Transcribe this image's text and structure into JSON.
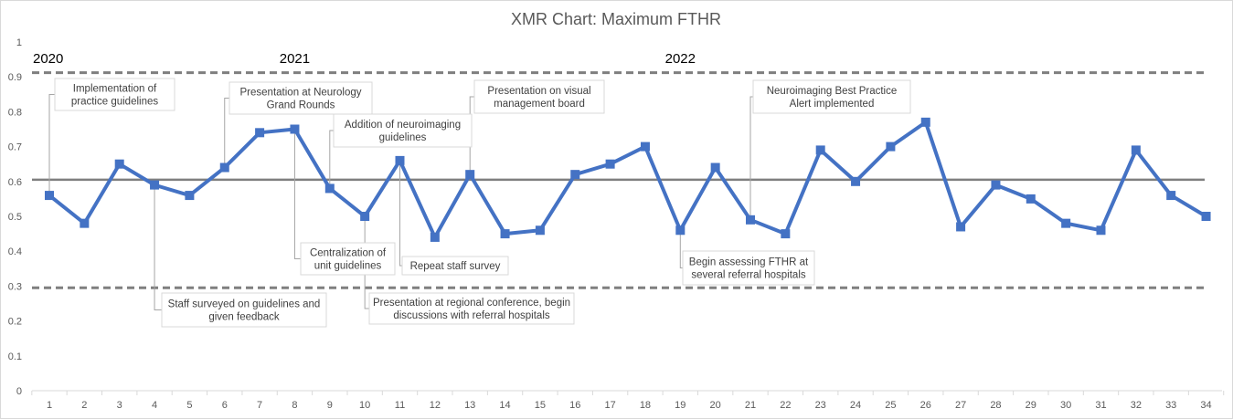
{
  "chart_data": {
    "type": "line",
    "title": "XMR Chart: Maximum FTHR",
    "xlabel": "",
    "ylabel": "",
    "x": [
      1,
      2,
      3,
      4,
      5,
      6,
      7,
      8,
      9,
      10,
      11,
      12,
      13,
      14,
      15,
      16,
      17,
      18,
      19,
      20,
      21,
      22,
      23,
      24,
      25,
      26,
      27,
      28,
      29,
      30,
      31,
      32,
      33,
      34
    ],
    "series": [
      {
        "values": [
          0.56,
          0.48,
          0.65,
          0.59,
          0.56,
          0.64,
          0.74,
          0.75,
          0.58,
          0.5,
          0.66,
          0.44,
          0.62,
          0.45,
          0.46,
          0.62,
          0.65,
          0.7,
          0.46,
          0.64,
          0.49,
          0.45,
          0.69,
          0.6,
          0.7,
          0.77,
          0.47,
          0.59,
          0.55,
          0.48,
          0.46,
          0.69,
          0.56,
          0.5
        ],
        "color": "#4472c4"
      }
    ],
    "center_line": {
      "value": 0.605,
      "color": "#7f7f7f"
    },
    "upper_limit": {
      "value": 0.912,
      "color": "#7f7f7f",
      "style": "dashed"
    },
    "lower_limit": {
      "value": 0.295,
      "color": "#7f7f7f",
      "style": "dashed"
    },
    "ylim": [
      0,
      1
    ],
    "yticks": [
      "0",
      "0.1",
      "0.2",
      "0.3",
      "0.4",
      "0.5",
      "0.6",
      "0.7",
      "0.8",
      "0.9",
      "1"
    ],
    "grid": false,
    "legend": "none",
    "year_labels": [
      {
        "text": "2020",
        "x": 1
      },
      {
        "text": "2021",
        "x": 8
      },
      {
        "text": "2022",
        "x": 19
      }
    ],
    "annotations": [
      {
        "point": 1,
        "lines": [
          "Implementation of",
          "practice guidelines"
        ]
      },
      {
        "point": 4,
        "lines": [
          "Staff surveyed on guidelines and",
          "given feedback"
        ]
      },
      {
        "point": 6,
        "lines": [
          "Presentation at Neurology",
          "Grand Rounds"
        ]
      },
      {
        "point": 8,
        "lines": [
          "Centralization of",
          "unit guidelines"
        ]
      },
      {
        "point": 9,
        "lines": [
          "Addition of neuroimaging",
          "guidelines"
        ]
      },
      {
        "point": 10,
        "lines": [
          "Presentation at regional conference, begin",
          "discussions with referral hospitals"
        ]
      },
      {
        "point": 11,
        "lines": [
          "Repeat staff survey"
        ]
      },
      {
        "point": 13,
        "lines": [
          "Presentation on visual",
          "management board"
        ]
      },
      {
        "point": 19,
        "lines": [
          "Begin assessing FTHR at",
          "several referral hospitals"
        ]
      },
      {
        "point": 21,
        "lines": [
          "Neuroimaging Best Practice",
          "Alert implemented"
        ]
      }
    ]
  }
}
